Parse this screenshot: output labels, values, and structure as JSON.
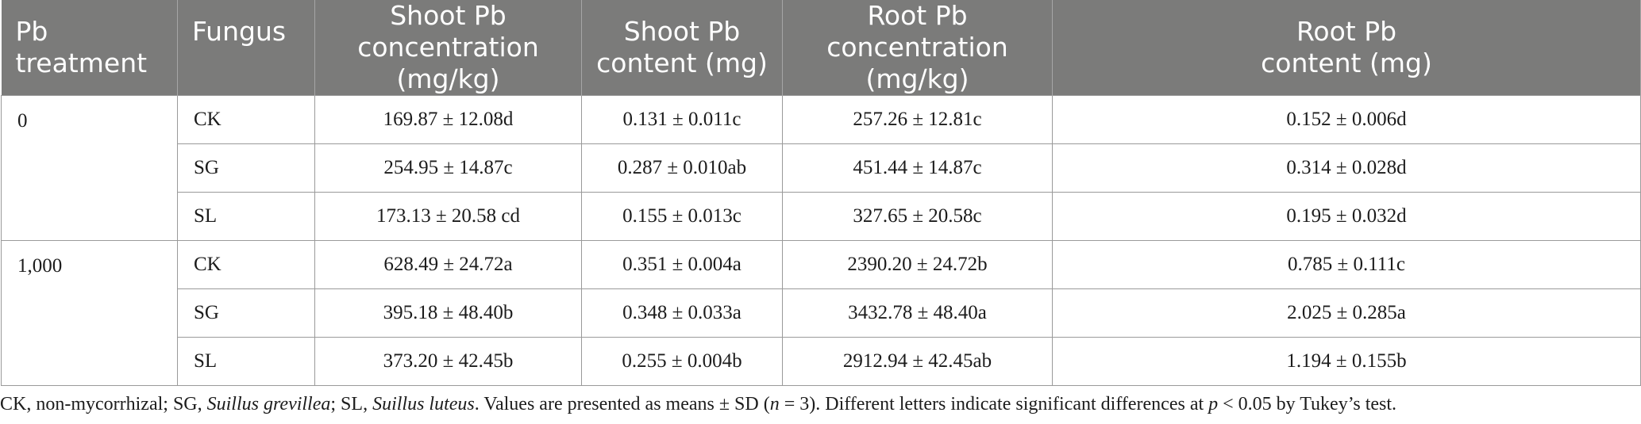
{
  "table": {
    "headers": [
      [
        "Pb treatment"
      ],
      [
        "Fungus"
      ],
      [
        "Shoot Pb",
        "concentration (mg/kg)"
      ],
      [
        "Shoot Pb",
        "content (mg)"
      ],
      [
        "Root Pb concentration",
        "(mg/kg)"
      ],
      [
        "Root Pb",
        "content (mg)"
      ]
    ],
    "groups": [
      {
        "treatment": "0",
        "rows": [
          {
            "fungus": "CK",
            "shoot_conc": "169.87 ± 12.08d",
            "shoot_content": "0.131 ± 0.011c",
            "root_conc": "257.26 ± 12.81c",
            "root_content": "0.152 ± 0.006d"
          },
          {
            "fungus": "SG",
            "shoot_conc": "254.95 ± 14.87c",
            "shoot_content": "0.287 ± 0.010ab",
            "root_conc": "451.44 ± 14.87c",
            "root_content": "0.314 ± 0.028d"
          },
          {
            "fungus": "SL",
            "shoot_conc": "173.13 ± 20.58 cd",
            "shoot_content": "0.155 ± 0.013c",
            "root_conc": "327.65 ± 20.58c",
            "root_content": "0.195 ± 0.032d"
          }
        ]
      },
      {
        "treatment": "1,000",
        "rows": [
          {
            "fungus": "CK",
            "shoot_conc": "628.49 ± 24.72a",
            "shoot_content": "0.351 ± 0.004a",
            "root_conc": "2390.20 ± 24.72b",
            "root_content": "0.785 ± 0.111c"
          },
          {
            "fungus": "SG",
            "shoot_conc": "395.18 ± 48.40b",
            "shoot_content": "0.348 ± 0.033a",
            "root_conc": "3432.78 ± 48.40a",
            "root_content": "2.025 ± 0.285a"
          },
          {
            "fungus": "SL",
            "shoot_conc": "373.20 ± 42.45b",
            "shoot_content": "0.255 ± 0.004b",
            "root_conc": "2912.94 ± 42.45ab",
            "root_content": "1.194 ± 0.155b"
          }
        ]
      }
    ]
  },
  "caption": {
    "p1": "CK, non-mycorrhizal; SG, ",
    "sg_species": "Suillus grevillea",
    "p2": "; SL, ",
    "sl_species": "Suillus luteus",
    "p3": ". Values are presented as means ± SD (",
    "n_var": "n",
    "p4": " = 3). Different letters indicate significant differences at ",
    "p_var": "p",
    "p5": " < 0.05 by Tukey’s test."
  }
}
